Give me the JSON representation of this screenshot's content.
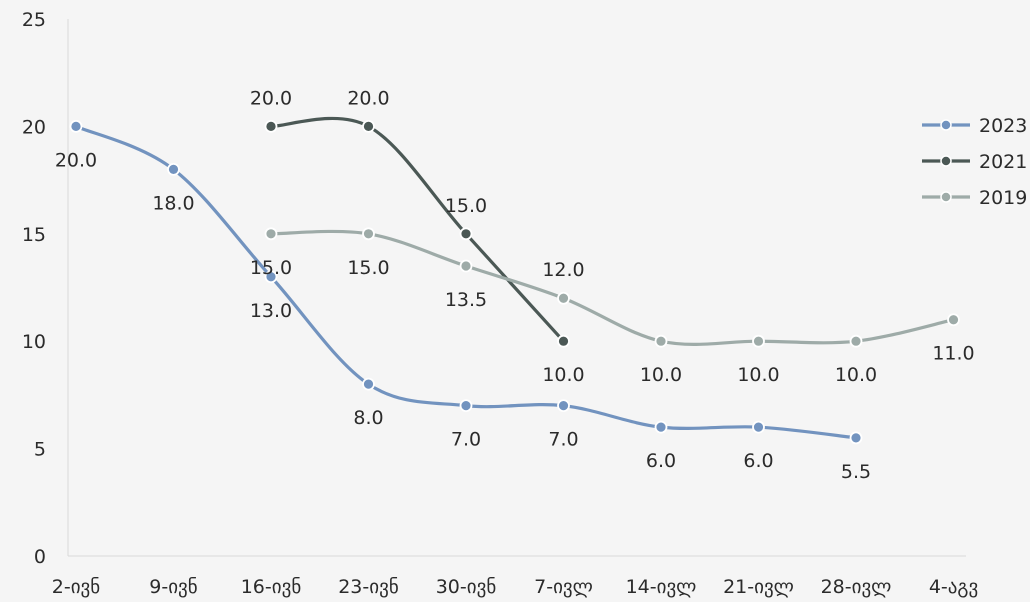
{
  "chart_data": {
    "type": "line",
    "title": "",
    "xlabel": "",
    "ylabel": "",
    "categories": [
      "2-ივნ",
      "9-ივნ",
      "16-ივნ",
      "23-ივნ",
      "30-ივნ",
      "7-ივლ",
      "14-ივლ",
      "21-ივლ",
      "28-ივლ",
      "4-აგვ"
    ],
    "ylim": [
      0,
      25
    ],
    "yticks": [
      "0",
      "5",
      "10",
      "15",
      "20",
      "25"
    ],
    "grid": false,
    "legend_position": "right",
    "series": [
      {
        "name": "2023",
        "color": "#7293bf",
        "values": [
          20.0,
          18.0,
          13.0,
          8.0,
          7.0,
          7.0,
          6.0,
          6.0,
          5.5,
          null
        ],
        "labels": [
          "20.0",
          "18.0",
          "13.0",
          "8.0",
          "7.0",
          "7.0",
          "6.0",
          "6.0",
          "5.5",
          null
        ]
      },
      {
        "name": "2021",
        "color": "#4b5855",
        "values": [
          null,
          null,
          20.0,
          20.0,
          15.0,
          10.0,
          null,
          null,
          null,
          null
        ],
        "labels": [
          null,
          null,
          "20.0",
          "20.0",
          "15.0",
          "10.0",
          null,
          null,
          null,
          null
        ]
      },
      {
        "name": "2019",
        "color": "#9eaba8",
        "values": [
          null,
          null,
          15.0,
          15.0,
          13.5,
          12.0,
          10.0,
          10.0,
          10.0,
          11.0
        ],
        "labels": [
          null,
          null,
          "15.0",
          "15.0",
          "13.5",
          "12.0",
          "10.0",
          "10.0",
          "10.0",
          "11.0"
        ]
      }
    ]
  }
}
